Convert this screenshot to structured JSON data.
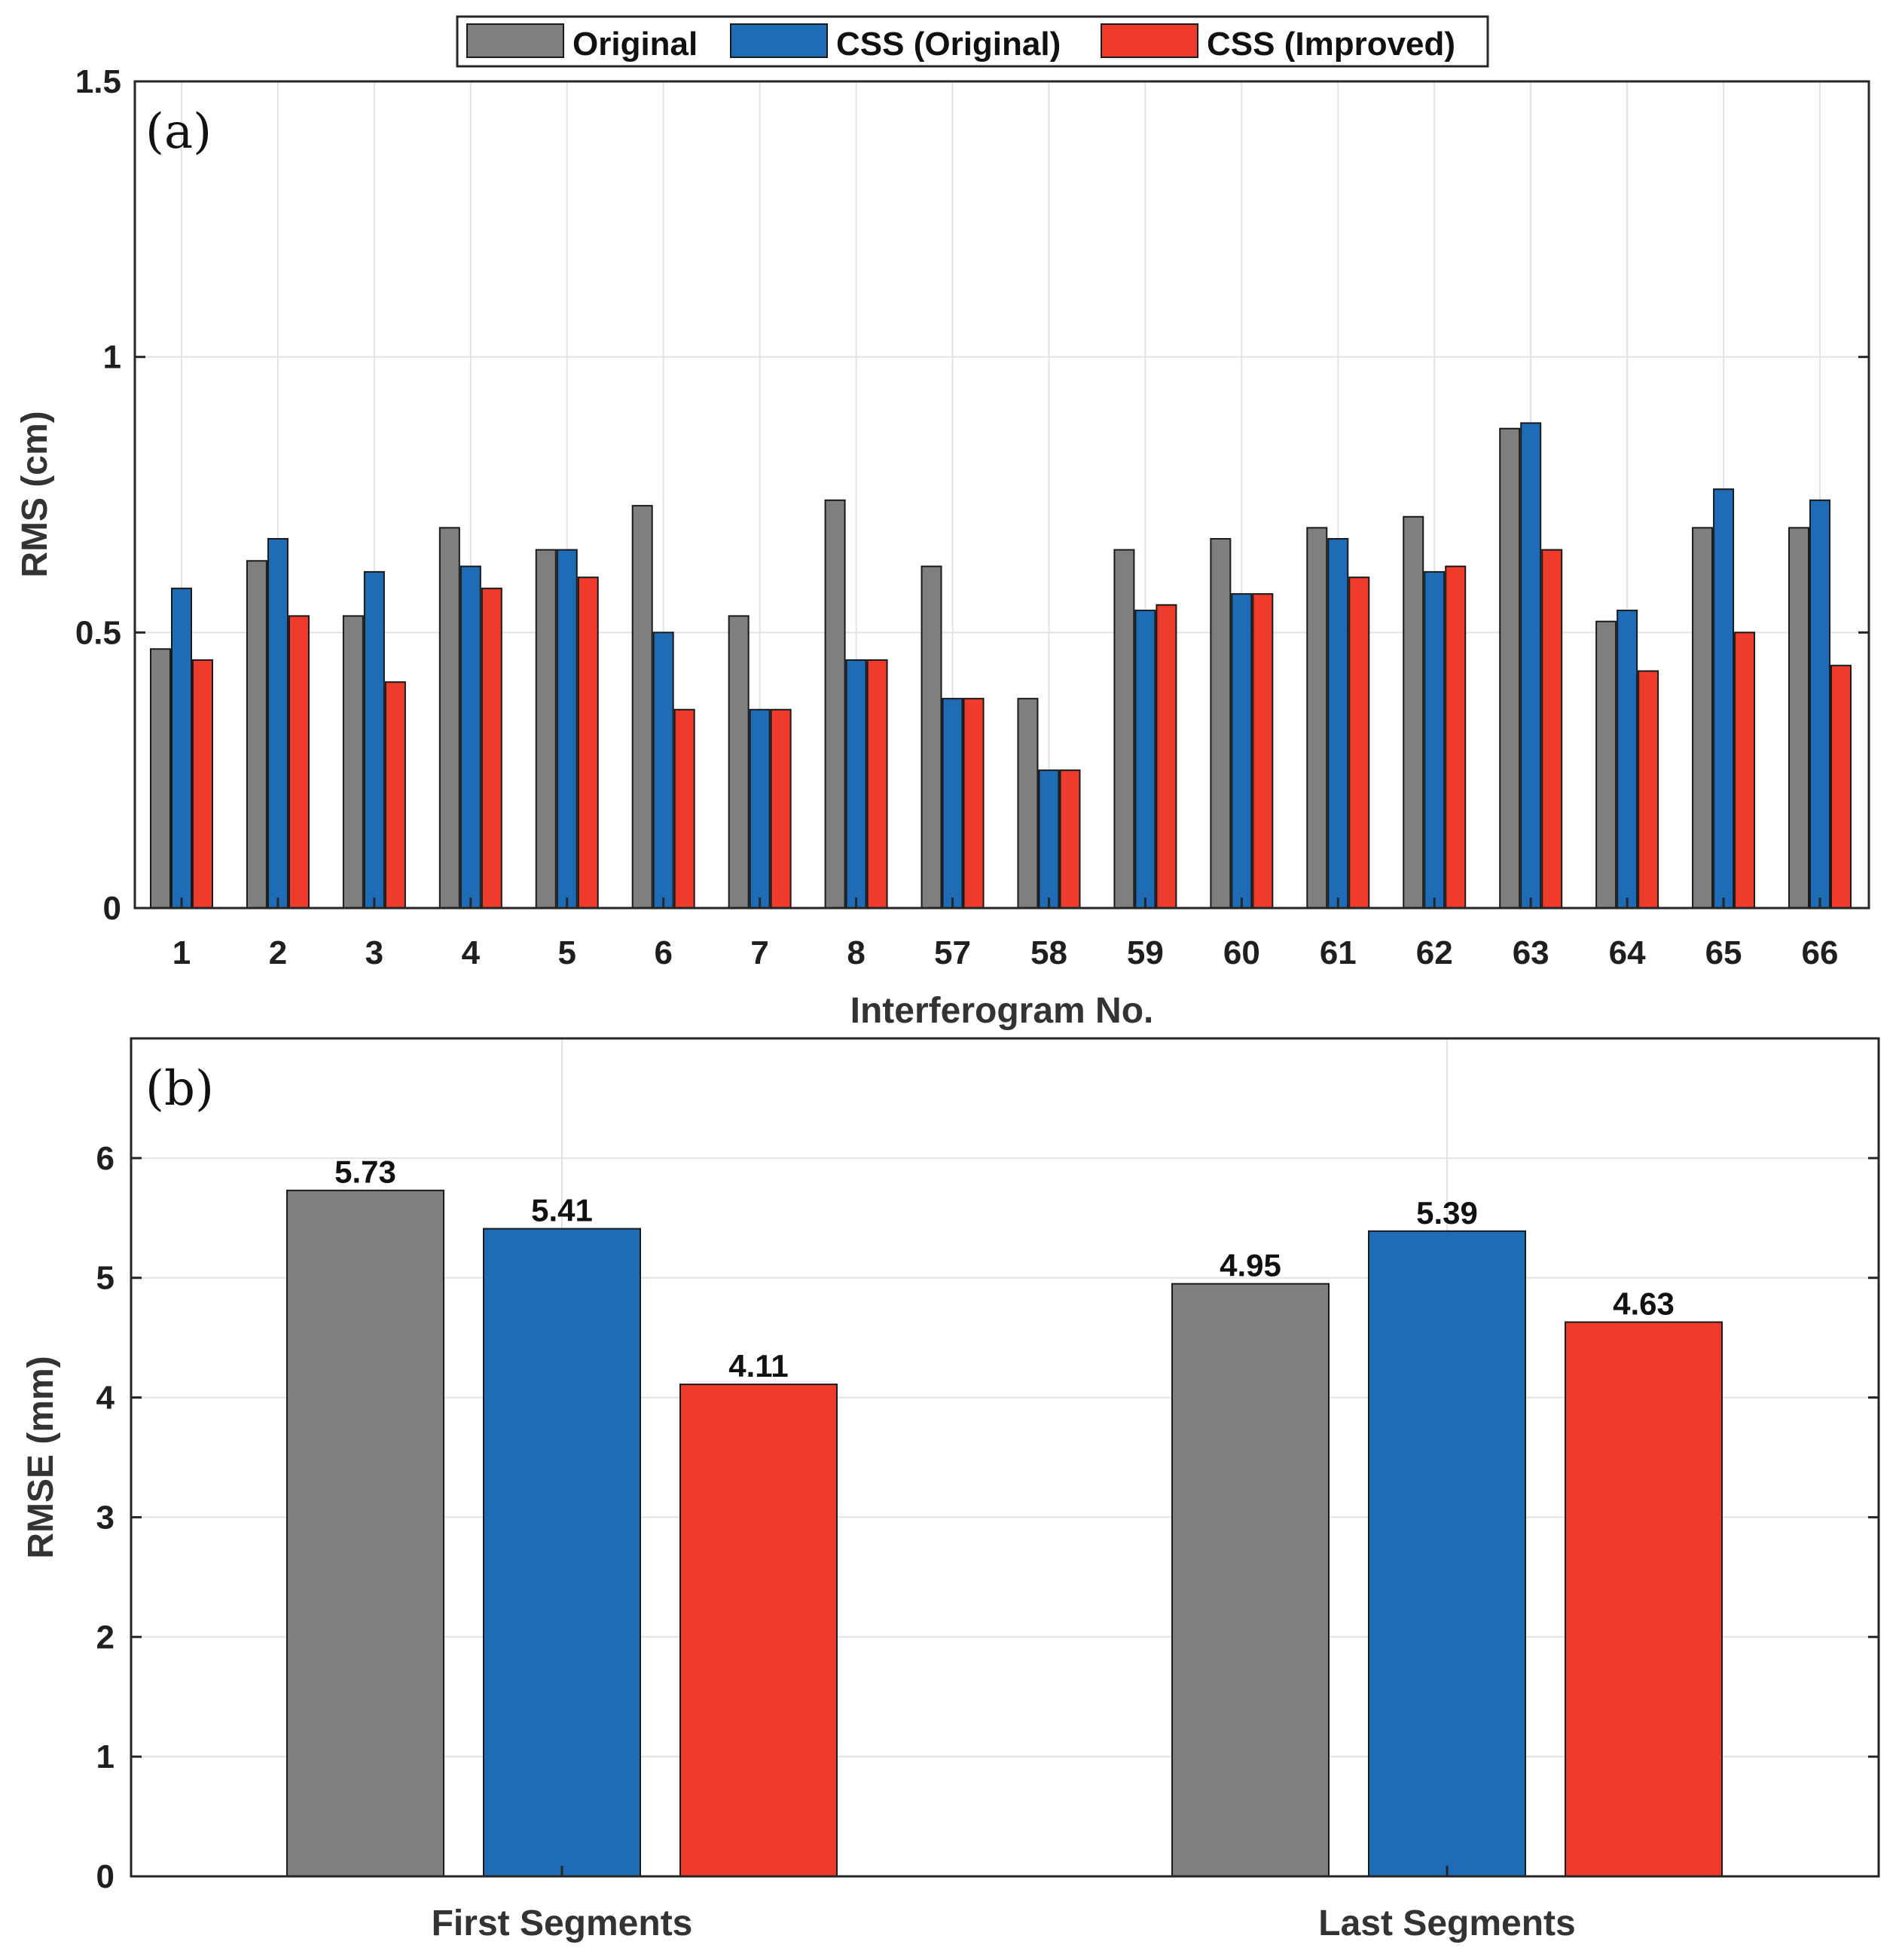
{
  "legend": {
    "entries": [
      {
        "name": "Original",
        "color": "#7f7f7f"
      },
      {
        "name": "CSS (Original)",
        "color": "#1f6cb6"
      },
      {
        "name": "CSS (Improved)",
        "color": "#ee3b2b"
      }
    ]
  },
  "chart_data": [
    {
      "type": "bar",
      "panel_label": "(a)",
      "xlabel": "Interferogram No.",
      "ylabel": "RMS (cm)",
      "ylim": [
        0,
        1.5
      ],
      "yticks": [
        "0",
        "0.5",
        "1",
        "1.5"
      ],
      "ytick_values": [
        0,
        0.5,
        1,
        1.5
      ],
      "grid": true,
      "categories": [
        "1",
        "2",
        "3",
        "4",
        "5",
        "6",
        "7",
        "8",
        "57",
        "58",
        "59",
        "60",
        "61",
        "62",
        "63",
        "64",
        "65",
        "66"
      ],
      "series": [
        {
          "name": "Original",
          "color": "#7f7f7f",
          "values": [
            0.47,
            0.63,
            0.53,
            0.69,
            0.65,
            0.73,
            0.53,
            0.74,
            0.62,
            0.38,
            0.65,
            0.67,
            0.69,
            0.71,
            0.87,
            0.52,
            0.69,
            0.69
          ]
        },
        {
          "name": "CSS (Original)",
          "color": "#1f6cb6",
          "values": [
            0.58,
            0.67,
            0.61,
            0.62,
            0.65,
            0.5,
            0.36,
            0.45,
            0.38,
            0.25,
            0.54,
            0.57,
            0.67,
            0.61,
            0.88,
            0.54,
            0.76,
            0.74
          ]
        },
        {
          "name": "CSS (Improved)",
          "color": "#ee3b2b",
          "values": [
            0.45,
            0.53,
            0.41,
            0.58,
            0.6,
            0.36,
            0.36,
            0.45,
            0.38,
            0.25,
            0.55,
            0.57,
            0.6,
            0.62,
            0.65,
            0.43,
            0.5,
            0.44
          ]
        }
      ]
    },
    {
      "type": "bar",
      "panel_label": "(b)",
      "xlabel": "",
      "ylabel": "RMSE (mm)",
      "ylim": [
        0,
        7
      ],
      "yticks": [
        "0",
        "1",
        "2",
        "3",
        "4",
        "5",
        "6"
      ],
      "ytick_values": [
        0,
        1,
        2,
        3,
        4,
        5,
        6
      ],
      "grid": true,
      "categories": [
        "First Segments",
        "Last Segments"
      ],
      "series": [
        {
          "name": "Original",
          "color": "#7f7f7f",
          "values": [
            5.73,
            4.95
          ],
          "labels": [
            "5.73",
            "4.95"
          ]
        },
        {
          "name": "CSS (Original)",
          "color": "#1f6cb6",
          "values": [
            5.41,
            5.39
          ],
          "labels": [
            "5.41",
            "5.39"
          ]
        },
        {
          "name": "CSS (Improved)",
          "color": "#ee3b2b",
          "values": [
            4.11,
            4.63
          ],
          "labels": [
            "4.11",
            "4.63"
          ]
        }
      ]
    }
  ]
}
